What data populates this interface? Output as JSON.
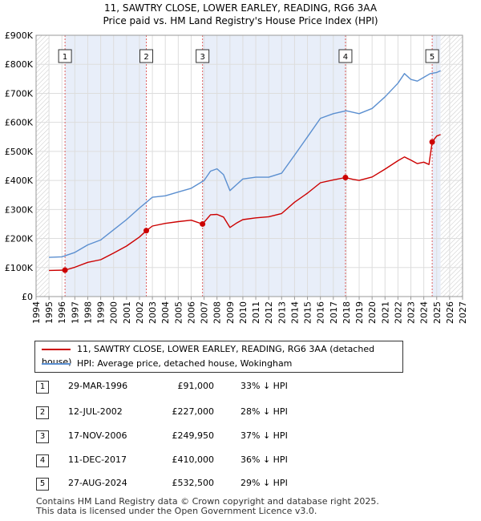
{
  "title_line1": "11, SAWTRY CLOSE, LOWER EARLEY, READING, RG6 3AA",
  "title_line2": "Price paid vs. HM Land Registry's House Price Index (HPI)",
  "colors": {
    "price_line": "#cc0000",
    "hpi_line": "#5b8fd0",
    "shade": "#e8eef9",
    "hatch": "#c8c8c8",
    "grid": "#dddddd",
    "marker_line": "#e06060"
  },
  "chart_data": {
    "type": "line",
    "title": "11, SAWTRY CLOSE, LOWER EARLEY, READING, RG6 3AA — Price paid vs. HM Land Registry's House Price Index (HPI)",
    "xlabel": "",
    "ylabel": "",
    "xlim": [
      1994,
      2027
    ],
    "ylim": [
      0,
      900000
    ],
    "y_ticks": [
      0,
      100000,
      200000,
      300000,
      400000,
      500000,
      600000,
      700000,
      800000,
      900000
    ],
    "y_tick_labels": [
      "£0",
      "£100K",
      "£200K",
      "£300K",
      "£400K",
      "£500K",
      "£600K",
      "£700K",
      "£800K",
      "£900K"
    ],
    "x_ticks": [
      1994,
      1995,
      1996,
      1997,
      1998,
      1999,
      2000,
      2001,
      2002,
      2003,
      2004,
      2005,
      2006,
      2007,
      2008,
      2009,
      2010,
      2011,
      2012,
      2013,
      2014,
      2015,
      2016,
      2017,
      2018,
      2019,
      2020,
      2021,
      2022,
      2023,
      2024,
      2025,
      2026,
      2027
    ],
    "data_start": 1995.0,
    "data_end": 2025.3,
    "shaded_spans": [
      [
        1996.24,
        2002.53
      ],
      [
        2006.88,
        2017.94
      ],
      [
        2024.65,
        2025.3
      ]
    ],
    "hatched_spans": [
      [
        1994,
        1995.0
      ],
      [
        2025.3,
        2027
      ]
    ],
    "series": [
      {
        "name": "11, SAWTRY CLOSE, LOWER EARLEY, READING, RG6 3AA (detached house)",
        "color": "#cc0000",
        "x": [
          1995.0,
          1996.24,
          1997.0,
          1998.0,
          1999.0,
          2000.0,
          2001.0,
          2002.0,
          2002.53,
          2003.0,
          2004.0,
          2005.0,
          2006.0,
          2006.88,
          2007.5,
          2008.0,
          2008.5,
          2009.0,
          2009.5,
          2010.0,
          2011.0,
          2012.0,
          2013.0,
          2014.0,
          2015.0,
          2016.0,
          2017.0,
          2017.94,
          2018.5,
          2019.0,
          2020.0,
          2021.0,
          2022.0,
          2022.5,
          2023.0,
          2023.5,
          2024.0,
          2024.4,
          2024.65,
          2025.0,
          2025.3
        ],
        "values": [
          90000,
          91000,
          101000,
          118000,
          127000,
          150000,
          174000,
          205000,
          227000,
          243000,
          252000,
          258000,
          263000,
          249950,
          282000,
          283000,
          274000,
          238000,
          253000,
          265000,
          271000,
          275000,
          286000,
          325000,
          356000,
          392000,
          402000,
          410000,
          404000,
          400000,
          412000,
          439000,
          468000,
          481000,
          470000,
          458000,
          463000,
          455000,
          532500,
          553000,
          558000
        ]
      },
      {
        "name": "HPI: Average price, detached house, Wokingham",
        "color": "#5b8fd0",
        "x": [
          1995.0,
          1996.0,
          1997.0,
          1998.0,
          1999.0,
          2000.0,
          2001.0,
          2002.0,
          2003.0,
          2004.0,
          2005.0,
          2006.0,
          2007.0,
          2007.5,
          2008.0,
          2008.5,
          2009.0,
          2009.5,
          2010.0,
          2011.0,
          2012.0,
          2013.0,
          2014.0,
          2015.0,
          2016.0,
          2017.0,
          2018.0,
          2019.0,
          2020.0,
          2021.0,
          2022.0,
          2022.5,
          2023.0,
          2023.5,
          2024.0,
          2024.5,
          2025.0,
          2025.3
        ],
        "values": [
          135000,
          137000,
          152000,
          178000,
          195000,
          230000,
          265000,
          305000,
          342000,
          347000,
          360000,
          373000,
          400000,
          432000,
          440000,
          420000,
          365000,
          385000,
          405000,
          411000,
          411000,
          425000,
          487000,
          550000,
          614000,
          630000,
          640000,
          630000,
          648000,
          688000,
          735000,
          768000,
          748000,
          742000,
          755000,
          768000,
          772000,
          778000
        ]
      }
    ],
    "sales": [
      {
        "label": "1",
        "x": 1996.24,
        "value": 91000
      },
      {
        "label": "2",
        "x": 2002.53,
        "value": 227000
      },
      {
        "label": "3",
        "x": 2006.88,
        "value": 249950
      },
      {
        "label": "4",
        "x": 2017.94,
        "value": 410000
      },
      {
        "label": "5",
        "x": 2024.65,
        "value": 532500
      }
    ]
  },
  "legend": {
    "price_label": "11, SAWTRY CLOSE, LOWER EARLEY, READING, RG6 3AA (detached house)",
    "hpi_label": "HPI: Average price, detached house, Wokingham"
  },
  "sales_table": [
    {
      "num": "1",
      "date": "29-MAR-1996",
      "price": "£91,000",
      "hpi": "33% ↓ HPI"
    },
    {
      "num": "2",
      "date": "12-JUL-2002",
      "price": "£227,000",
      "hpi": "28% ↓ HPI"
    },
    {
      "num": "3",
      "date": "17-NOV-2006",
      "price": "£249,950",
      "hpi": "37% ↓ HPI"
    },
    {
      "num": "4",
      "date": "11-DEC-2017",
      "price": "£410,000",
      "hpi": "36% ↓ HPI"
    },
    {
      "num": "5",
      "date": "27-AUG-2024",
      "price": "£532,500",
      "hpi": "29% ↓ HPI"
    }
  ],
  "footer_line1": "Contains HM Land Registry data © Crown copyright and database right 2025.",
  "footer_line2": "This data is licensed under the Open Government Licence v3.0."
}
